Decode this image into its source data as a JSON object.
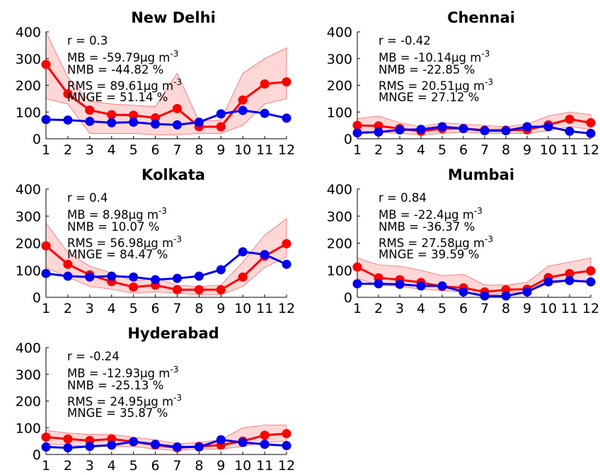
{
  "chart_data": [
    {
      "type": "line",
      "title": "New Delhi",
      "x": [
        1,
        2,
        3,
        4,
        5,
        6,
        7,
        8,
        9,
        10,
        11,
        12
      ],
      "xlim": [
        1,
        12
      ],
      "ylim": [
        0,
        400
      ],
      "yticks": [
        0,
        100,
        200,
        300,
        400
      ],
      "grid": false,
      "stats": [
        "r = 0.3",
        "MB = -59.79µg m",
        "NMB = -44.82  %",
        "RMS = 89.61µg m",
        "MNGE = 51.14 %"
      ],
      "stats_sup": [
        "",
        "-3",
        "",
        "-3",
        ""
      ],
      "series": [
        {
          "color": "#ff0000",
          "values": [
            278,
            168,
            107,
            90,
            88,
            78,
            113,
            45,
            45,
            145,
            205,
            213
          ]
        },
        {
          "color": "#0000ee",
          "values": [
            72,
            70,
            65,
            60,
            62,
            55,
            52,
            62,
            93,
            106,
            95,
            77
          ]
        }
      ],
      "band": {
        "color": "#ffd0d0",
        "upper": [
          400,
          230,
          140,
          130,
          125,
          120,
          245,
          65,
          70,
          245,
          300,
          340
        ],
        "lower": [
          150,
          130,
          20,
          20,
          20,
          15,
          15,
          20,
          20,
          50,
          130,
          150
        ]
      }
    },
    {
      "type": "line",
      "title": "Chennai",
      "x": [
        1,
        2,
        3,
        4,
        5,
        6,
        7,
        8,
        9,
        10,
        11,
        12
      ],
      "xlim": [
        1,
        12
      ],
      "ylim": [
        0,
        400
      ],
      "yticks": [
        0,
        100,
        200,
        300,
        400
      ],
      "grid": false,
      "stats": [
        "r = -0.42",
        "MB = -10.14µg m",
        "NMB = -22.85  %",
        "RMS = 20.51µg m",
        "MNGE = 27.12 %"
      ],
      "stats_sup": [
        "",
        "-3",
        "",
        "-3",
        ""
      ],
      "series": [
        {
          "color": "#ff0000",
          "values": [
            50,
            48,
            38,
            28,
            38,
            38,
            32,
            32,
            33,
            52,
            73,
            60
          ]
        },
        {
          "color": "#0000ee",
          "values": [
            22,
            25,
            33,
            35,
            45,
            38,
            30,
            30,
            45,
            45,
            28,
            20
          ]
        }
      ],
      "band": {
        "color": "#ffd0d0",
        "upper": [
          75,
          85,
          60,
          45,
          60,
          55,
          50,
          45,
          55,
          85,
          100,
          90
        ],
        "lower": [
          30,
          25,
          20,
          15,
          20,
          25,
          20,
          20,
          20,
          30,
          45,
          35
        ]
      }
    },
    {
      "type": "line",
      "title": "Kolkata",
      "x": [
        1,
        2,
        3,
        4,
        5,
        6,
        7,
        8,
        9,
        10,
        11,
        12
      ],
      "xlim": [
        1,
        12
      ],
      "ylim": [
        0,
        400
      ],
      "yticks": [
        0,
        100,
        200,
        300,
        400
      ],
      "grid": false,
      "stats": [
        "r = 0.4",
        "MB = 8.98µg m",
        "NMB = 10.07  %",
        "RMS = 56.98µg m",
        "MNGE = 84.47 %"
      ],
      "stats_sup": [
        "",
        "-3",
        "",
        "-3",
        ""
      ],
      "series": [
        {
          "color": "#ff0000",
          "values": [
            190,
            122,
            83,
            58,
            38,
            45,
            28,
            28,
            28,
            75,
            152,
            198
          ]
        },
        {
          "color": "#0000ee",
          "values": [
            88,
            78,
            75,
            78,
            75,
            65,
            70,
            78,
            102,
            168,
            158,
            122
          ]
        }
      ],
      "band": {
        "color": "#ffd0d0",
        "upper": [
          275,
          165,
          115,
          90,
          60,
          70,
          45,
          40,
          45,
          130,
          230,
          290
        ],
        "lower": [
          110,
          75,
          40,
          30,
          15,
          20,
          15,
          10,
          10,
          40,
          110,
          150
        ]
      }
    },
    {
      "type": "line",
      "title": "Mumbai",
      "x": [
        1,
        2,
        3,
        4,
        5,
        6,
        7,
        8,
        9,
        10,
        11,
        12
      ],
      "xlim": [
        1,
        12
      ],
      "ylim": [
        0,
        400
      ],
      "yticks": [
        0,
        100,
        200,
        300,
        400
      ],
      "grid": false,
      "stats": [
        "r = 0.84",
        "MB = -22.4µg m",
        "NMB = -36.37  %",
        "RMS = 27.58µg m",
        "MNGE = 39.59 %"
      ],
      "stats_sup": [
        "",
        "-3",
        "",
        "-3",
        ""
      ],
      "series": [
        {
          "color": "#ff0000",
          "values": [
            112,
            72,
            65,
            55,
            40,
            35,
            20,
            28,
            30,
            73,
            88,
            98
          ]
        },
        {
          "color": "#0000ee",
          "values": [
            50,
            50,
            48,
            42,
            42,
            20,
            5,
            5,
            20,
            57,
            62,
            57
          ]
        }
      ],
      "band": {
        "color": "#ffd0d0",
        "upper": [
          145,
          120,
          115,
          100,
          80,
          85,
          45,
          45,
          55,
          115,
          130,
          145
        ],
        "lower": [
          70,
          45,
          40,
          30,
          25,
          20,
          10,
          15,
          20,
          50,
          60,
          65
        ]
      }
    },
    {
      "type": "line",
      "title": "Hyderabad",
      "x": [
        1,
        2,
        3,
        4,
        5,
        6,
        7,
        8,
        9,
        10,
        11,
        12
      ],
      "xlim": [
        1,
        12
      ],
      "ylim": [
        0,
        400
      ],
      "yticks": [
        0,
        100,
        200,
        300,
        400
      ],
      "grid": false,
      "stats": [
        "r = -0.24",
        "MB = -12.93µg m",
        "NMB = -25.13  %",
        "RMS = 24.95µg m",
        "MNGE = 35.87 %"
      ],
      "stats_sup": [
        "",
        "-3",
        "",
        "-3",
        ""
      ],
      "series": [
        {
          "color": "#ff0000",
          "values": [
            65,
            58,
            52,
            58,
            48,
            35,
            25,
            30,
            35,
            50,
            72,
            78
          ]
        },
        {
          "color": "#0000ee",
          "values": [
            28,
            25,
            30,
            35,
            48,
            38,
            28,
            28,
            55,
            45,
            38,
            33
          ]
        }
      ],
      "band": {
        "color": "#ffd0d0",
        "upper": [
          90,
          80,
          75,
          75,
          65,
          55,
          40,
          45,
          55,
          100,
          110,
          110
        ],
        "lower": [
          40,
          35,
          30,
          30,
          30,
          20,
          15,
          20,
          20,
          30,
          45,
          50
        ]
      }
    }
  ]
}
